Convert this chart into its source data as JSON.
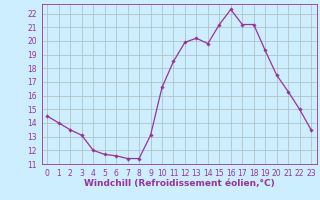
{
  "x": [
    0,
    1,
    2,
    3,
    4,
    5,
    6,
    7,
    8,
    9,
    10,
    11,
    12,
    13,
    14,
    15,
    16,
    17,
    18,
    19,
    20,
    21,
    22,
    23
  ],
  "y": [
    14.5,
    14.0,
    13.5,
    13.1,
    12.0,
    11.7,
    11.6,
    11.4,
    11.4,
    13.1,
    16.6,
    18.5,
    19.9,
    20.2,
    19.8,
    21.2,
    22.3,
    21.2,
    21.2,
    19.3,
    17.5,
    16.3,
    15.0,
    13.5
  ],
  "line_color": "#993399",
  "marker": "D",
  "marker_size": 1.8,
  "line_width": 0.9,
  "bg_color": "#cceeff",
  "grid_color": "#aabbbb",
  "xlabel": "Windchill (Refroidissement éolien,°C)",
  "xlim": [
    -0.5,
    23.5
  ],
  "ylim": [
    11,
    22.7
  ],
  "yticks": [
    11,
    12,
    13,
    14,
    15,
    16,
    17,
    18,
    19,
    20,
    21,
    22
  ],
  "xticks": [
    0,
    1,
    2,
    3,
    4,
    5,
    6,
    7,
    8,
    9,
    10,
    11,
    12,
    13,
    14,
    15,
    16,
    17,
    18,
    19,
    20,
    21,
    22,
    23
  ],
  "tick_label_color": "#993399",
  "axis_label_color": "#993399",
  "xlabel_fontsize": 6.5,
  "tick_fontsize": 5.5,
  "spine_color": "#993399"
}
